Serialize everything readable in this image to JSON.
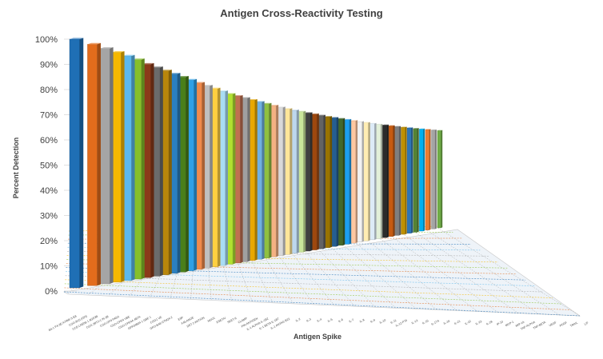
{
  "chart_data": {
    "type": "bar",
    "style": "3d-column-perspective",
    "title": "Antigen Cross-Reactivity Testing",
    "xlabel": "Antigen Spike",
    "ylabel": "Percent Detection",
    "ylim": [
      0,
      1
    ],
    "yticks": [
      "0%",
      "10%",
      "20%",
      "30%",
      "40%",
      "50%",
      "60%",
      "70%",
      "80%",
      "90%",
      "100%"
    ],
    "grid": true,
    "legend": "none",
    "categories": [
      "B4-1 P4-3E.A7/B6/ 3-E8",
      "CGO-B15 (GPI)",
      "CCE-LNE08 1 AGE3B",
      "CGG 2BT2-1 IN 3B",
      "CGO-OF0 PAD3",
      "CGO-CPE4 VBE",
      "CGO-CPE4A 4B7A",
      "GPF04B04 1 GBE 1",
      "CGG1 VE",
      "GFO-B48 GTM24 2",
      "E9P",
      "F45 ANOE",
      "DET 2 ANTIGN",
      "NGO1",
      "ESETIV",
      "SKET-6",
      "CLAMP",
      "PIN ANTIGEN",
      "IL-1 ALPHA IL-1B2",
      "IL-1 BETA IL-1B7",
      "IL-1 ANTAG B22",
      "IL-2",
      "IL-3",
      "IL-4",
      "IL-5",
      "IL-6",
      "IL-7",
      "IL-8",
      "IL-9",
      "IL-10",
      "IL-11",
      "IL-12 P70",
      "IL-13",
      "IL-15",
      "IL-17A",
      "IL-18",
      "IL-21",
      "IL-22",
      "IL-23",
      "IL-28",
      "IP-10",
      "MCP-1",
      "MIP-1A",
      "TNF-ALPHA",
      "TNF-BETA",
      "VEGF",
      "PDGF",
      "TRAIL",
      "LIF"
    ],
    "values": [
      1.0,
      0.99,
      0.98,
      0.97,
      0.96,
      0.95,
      0.935,
      0.925,
      0.915,
      0.905,
      0.895,
      0.885,
      0.875,
      0.865,
      0.855,
      0.845,
      0.835,
      0.828,
      0.821,
      0.814,
      0.807,
      0.8,
      0.793,
      0.786,
      0.78,
      0.775,
      0.77,
      0.765,
      0.76,
      0.755,
      0.75,
      0.746,
      0.742,
      0.738,
      0.734,
      0.73,
      0.726,
      0.722,
      0.718,
      0.715,
      0.712,
      0.709,
      0.706,
      0.703,
      0.7,
      0.698,
      0.696,
      0.694,
      0.692
    ],
    "colors": [
      "#1f6fb5",
      "#e36c1c",
      "#a5a5a5",
      "#f5b800",
      "#5bb8ec",
      "#86bf2a",
      "#8b3a1a",
      "#6b6b6b",
      "#b8860b",
      "#2a7fc0",
      "#4a7f1a",
      "#2fa0e6",
      "#f08a4b",
      "#c0c0c0",
      "#ffd040",
      "#a8dcf5",
      "#b0e030",
      "#c07050",
      "#a0a0a0",
      "#e8a800",
      "#70b0e0",
      "#90c040",
      "#f4b183",
      "#d9d9d9",
      "#ffe699",
      "#bdd7ee",
      "#c9e59a",
      "#404040",
      "#9e480e",
      "#636363",
      "#997300",
      "#255e91",
      "#43682b",
      "#1c9ef0",
      "#ffc7a0",
      "#f2f2f2",
      "#ffedb3",
      "#ddebf7",
      "#e2f0d9",
      "#2b2b2b",
      "#c55a11",
      "#7f7f7f",
      "#bf9000",
      "#2e75b6",
      "#548235",
      "#00b0f0",
      "#ed7d31",
      "#a5a5a5",
      "#70ad47"
    ]
  }
}
